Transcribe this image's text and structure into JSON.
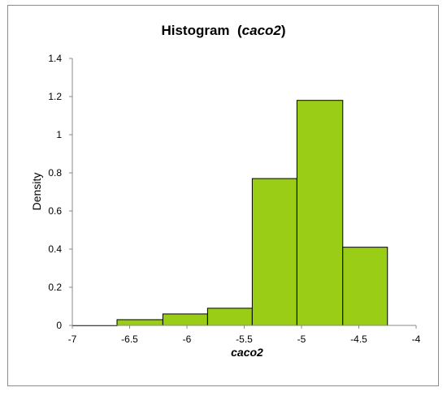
{
  "chart_data": {
    "type": "bar",
    "title_main": "Histogram",
    "title_var": "caco2",
    "xlabel": "caco2",
    "ylabel": "Density",
    "xlim": [
      -7,
      -4
    ],
    "ylim": [
      0,
      1.4
    ],
    "xticks": [
      "-7",
      "-6.5",
      "-6",
      "-5.5",
      "-5",
      "-4.5",
      "-4"
    ],
    "yticks": [
      "0",
      "0.2",
      "0.4",
      "0.6",
      "0.8",
      "1",
      "1.2",
      "1.4"
    ],
    "bins": [
      {
        "x0": -7.0,
        "x1": -6.61,
        "value": 0.0
      },
      {
        "x0": -6.61,
        "x1": -6.21,
        "value": 0.03
      },
      {
        "x0": -6.21,
        "x1": -5.82,
        "value": 0.06
      },
      {
        "x0": -5.82,
        "x1": -5.43,
        "value": 0.09
      },
      {
        "x0": -5.43,
        "x1": -5.04,
        "value": 0.77
      },
      {
        "x0": -5.04,
        "x1": -4.64,
        "value": 1.18
      },
      {
        "x0": -4.64,
        "x1": -4.25,
        "value": 0.41
      }
    ],
    "bar_color": "#9acd16",
    "bar_stroke": "#000000",
    "grid": false
  }
}
